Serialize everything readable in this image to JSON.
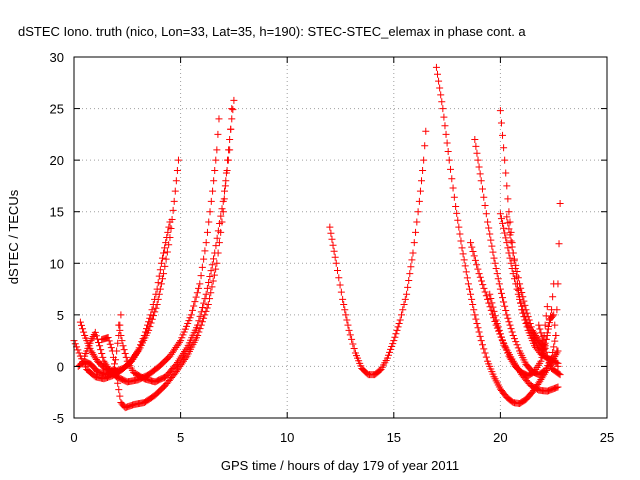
{
  "chart_data": {
    "type": "scatter",
    "title": "dSTEC Iono. truth (nico, Lon=33, Lat=35, h=190): STEC-STEC_elemax in phase cont. a",
    "xlabel": "GPS time / hours of day 179 of year 2011",
    "ylabel": "dSTEC  / TECUs",
    "xlim": [
      0,
      25
    ],
    "ylim": [
      -5,
      30
    ],
    "xticks": [
      "0",
      "5",
      "10",
      "15",
      "20",
      "25"
    ],
    "yticks": [
      "-5",
      "0",
      "5",
      "10",
      "15",
      "20",
      "25",
      "30"
    ],
    "grid": true,
    "legend": "none",
    "marker": "+",
    "color": "#ff0000",
    "series": [
      {
        "points": [
          [
            0.0,
            2.5
          ],
          [
            0.3,
            1.0
          ],
          [
            0.6,
            -0.3
          ],
          [
            1.0,
            -1.0
          ],
          [
            1.4,
            -1.2
          ],
          [
            1.8,
            -0.9
          ],
          [
            2.2,
            -0.4
          ],
          [
            2.6,
            0.3
          ],
          [
            3.0,
            1.5
          ],
          [
            3.3,
            3.0
          ],
          [
            3.6,
            5.0
          ],
          [
            3.9,
            7.5
          ],
          [
            4.1,
            10.0
          ],
          [
            4.3,
            12.0
          ],
          [
            4.5,
            14.0
          ]
        ]
      },
      {
        "points": [
          [
            0.3,
            4.3
          ],
          [
            0.5,
            3.0
          ],
          [
            0.8,
            1.5
          ],
          [
            1.1,
            0.5
          ],
          [
            1.5,
            -0.3
          ],
          [
            1.9,
            -0.5
          ],
          [
            2.3,
            -0.2
          ],
          [
            2.7,
            0.5
          ],
          [
            3.1,
            1.8
          ],
          [
            3.5,
            3.5
          ],
          [
            3.9,
            6.0
          ],
          [
            4.2,
            9.0
          ],
          [
            4.5,
            12.5
          ],
          [
            4.7,
            16.0
          ],
          [
            4.9,
            20.0
          ]
        ]
      },
      {
        "points": [
          [
            0.5,
            1.0
          ],
          [
            0.8,
            2.5
          ],
          [
            1.0,
            3.3
          ],
          [
            1.2,
            2.0
          ],
          [
            1.4,
            0.5
          ],
          [
            1.7,
            -0.5
          ],
          [
            2.0,
            -1.0
          ],
          [
            2.5,
            -1.5
          ],
          [
            3.0,
            -1.3
          ],
          [
            3.5,
            -0.8
          ],
          [
            4.0,
            0.0
          ],
          [
            4.5,
            1.0
          ],
          [
            5.0,
            2.5
          ],
          [
            5.5,
            5.0
          ],
          [
            5.9,
            8.0
          ],
          [
            6.2,
            12.0
          ],
          [
            6.5,
            17.0
          ],
          [
            6.7,
            21.0
          ],
          [
            6.8,
            24.0
          ]
        ]
      },
      {
        "points": [
          [
            0.2,
            0.0
          ],
          [
            0.5,
            0.5
          ],
          [
            0.8,
            0.2
          ],
          [
            1.1,
            -0.5
          ],
          [
            1.5,
            -0.8
          ],
          [
            1.9,
            -0.2
          ],
          [
            2.0,
            1.5
          ],
          [
            2.1,
            3.0
          ],
          [
            2.2,
            5.0
          ]
        ]
      },
      {
        "points": [
          [
            1.3,
            2.6
          ],
          [
            1.6,
            2.8
          ],
          [
            1.8,
            1.5
          ],
          [
            2.0,
            -1.0
          ],
          [
            2.2,
            -3.5
          ],
          [
            2.4,
            -4.0
          ],
          [
            2.8,
            -3.7
          ],
          [
            3.3,
            -3.5
          ],
          [
            3.8,
            -2.8
          ],
          [
            4.3,
            -1.8
          ],
          [
            4.8,
            -0.5
          ],
          [
            5.3,
            1.0
          ],
          [
            5.8,
            3.0
          ],
          [
            6.3,
            6.0
          ],
          [
            6.7,
            10.0
          ],
          [
            7.0,
            15.0
          ],
          [
            7.2,
            20.0
          ],
          [
            7.4,
            24.0
          ],
          [
            7.5,
            25.8
          ]
        ]
      },
      {
        "points": [
          [
            2.1,
            4.0
          ],
          [
            2.3,
            2.0
          ],
          [
            2.5,
            0.5
          ],
          [
            2.8,
            -0.6
          ],
          [
            3.3,
            -1.2
          ],
          [
            3.8,
            -1.5
          ],
          [
            4.3,
            -1.0
          ],
          [
            4.8,
            0.2
          ],
          [
            5.3,
            1.8
          ],
          [
            5.8,
            4.0
          ],
          [
            6.2,
            7.0
          ],
          [
            6.6,
            11.0
          ],
          [
            7.0,
            16.0
          ],
          [
            7.3,
            21.0
          ],
          [
            7.4,
            25.0
          ]
        ]
      },
      {
        "points": [
          [
            12.0,
            13.5
          ],
          [
            12.3,
            10.0
          ],
          [
            12.6,
            6.5
          ],
          [
            12.9,
            3.5
          ],
          [
            13.2,
            1.3
          ],
          [
            13.5,
            -0.2
          ],
          [
            13.8,
            -0.8
          ],
          [
            14.1,
            -0.8
          ],
          [
            14.4,
            -0.3
          ],
          [
            14.7,
            0.8
          ],
          [
            15.0,
            2.5
          ],
          [
            15.3,
            4.5
          ],
          [
            15.6,
            7.0
          ],
          [
            15.9,
            11.0
          ],
          [
            16.2,
            16.0
          ],
          [
            16.4,
            20.0
          ],
          [
            16.5,
            22.8
          ]
        ]
      },
      {
        "points": [
          [
            17.0,
            29.0
          ],
          [
            17.3,
            25.0
          ],
          [
            17.6,
            20.0
          ],
          [
            17.9,
            15.5
          ],
          [
            18.2,
            11.5
          ],
          [
            18.5,
            8.0
          ],
          [
            18.8,
            5.0
          ],
          [
            19.1,
            2.5
          ],
          [
            19.4,
            0.5
          ],
          [
            19.7,
            -1.0
          ],
          [
            20.0,
            -2.2
          ],
          [
            20.3,
            -3.0
          ],
          [
            20.6,
            -3.5
          ],
          [
            20.9,
            -3.6
          ],
          [
            21.2,
            -3.2
          ],
          [
            21.5,
            -2.5
          ],
          [
            21.8,
            -1.6
          ],
          [
            22.1,
            -0.6
          ],
          [
            22.4,
            0.4
          ],
          [
            22.7,
            1.5
          ]
        ]
      },
      {
        "points": [
          [
            18.8,
            22.0
          ],
          [
            19.1,
            18.0
          ],
          [
            19.4,
            14.0
          ],
          [
            19.7,
            10.5
          ],
          [
            20.0,
            7.5
          ],
          [
            20.3,
            5.0
          ],
          [
            20.6,
            3.0
          ],
          [
            20.9,
            1.5
          ],
          [
            21.2,
            0.2
          ],
          [
            21.5,
            -0.5
          ],
          [
            21.8,
            -0.8
          ],
          [
            22.1,
            -0.4
          ],
          [
            22.4,
            0.8
          ],
          [
            22.6,
            3.0
          ],
          [
            22.7,
            8.0
          ],
          [
            22.8,
            15.8
          ]
        ]
      },
      {
        "points": [
          [
            20.0,
            24.8
          ],
          [
            20.2,
            20.0
          ],
          [
            20.4,
            15.0
          ],
          [
            20.6,
            11.0
          ],
          [
            20.8,
            8.0
          ],
          [
            21.0,
            5.5
          ],
          [
            21.3,
            3.5
          ],
          [
            21.6,
            2.0
          ],
          [
            21.9,
            1.2
          ],
          [
            22.2,
            0.8
          ],
          [
            22.5,
            0.5
          ],
          [
            22.7,
            0.3
          ]
        ]
      },
      {
        "points": [
          [
            20.0,
            14.8
          ],
          [
            20.3,
            12.0
          ],
          [
            20.6,
            9.0
          ],
          [
            20.9,
            6.5
          ],
          [
            21.2,
            4.5
          ],
          [
            21.5,
            3.0
          ],
          [
            21.8,
            2.0
          ],
          [
            22.0,
            1.5
          ],
          [
            22.2,
            3.0
          ],
          [
            22.4,
            5.5
          ],
          [
            22.5,
            8.0
          ]
        ]
      },
      {
        "points": [
          [
            20.3,
            14.5
          ],
          [
            20.6,
            11.0
          ],
          [
            20.9,
            8.0
          ],
          [
            21.2,
            5.5
          ],
          [
            21.5,
            3.5
          ],
          [
            21.8,
            2.5
          ],
          [
            22.0,
            2.0
          ],
          [
            22.1,
            4.0
          ],
          [
            22.2,
            5.8
          ]
        ]
      },
      {
        "points": [
          [
            18.6,
            12.0
          ],
          [
            19.0,
            9.0
          ],
          [
            19.4,
            6.5
          ],
          [
            19.8,
            4.0
          ],
          [
            20.2,
            2.0
          ],
          [
            20.6,
            0.5
          ],
          [
            21.0,
            -0.8
          ],
          [
            21.4,
            -1.8
          ],
          [
            21.8,
            -2.3
          ],
          [
            22.2,
            -2.4
          ],
          [
            22.7,
            -2.0
          ]
        ]
      },
      {
        "points": [
          [
            19.5,
            7.0
          ],
          [
            19.8,
            4.5
          ],
          [
            20.1,
            2.5
          ],
          [
            20.4,
            1.0
          ],
          [
            20.7,
            0.0
          ],
          [
            21.0,
            -0.6
          ],
          [
            21.3,
            -0.9
          ],
          [
            21.6,
            -0.5
          ],
          [
            21.9,
            0.5
          ],
          [
            22.1,
            2.0
          ],
          [
            22.3,
            4.5
          ],
          [
            22.5,
            5.0
          ],
          [
            22.6,
            3.0
          ],
          [
            22.7,
            0.0
          ]
        ]
      },
      {
        "points": [
          [
            21.8,
            4.0
          ],
          [
            22.0,
            2.5
          ],
          [
            22.2,
            1.0
          ],
          [
            22.4,
            -0.2
          ],
          [
            22.6,
            -0.5
          ],
          [
            22.8,
            -0.8
          ]
        ]
      }
    ]
  }
}
